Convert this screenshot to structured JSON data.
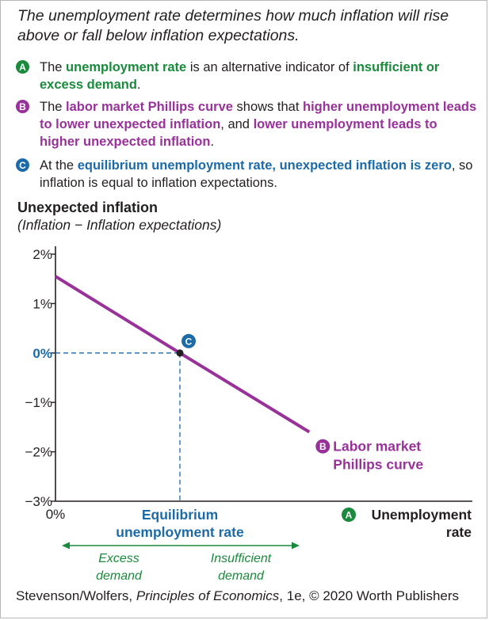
{
  "heading": "The unemployment rate determines how much inflation will rise above or fall below inflation expectations.",
  "notes": {
    "a": {
      "badge": "A",
      "t1": "The ",
      "h1": "unemployment rate",
      "t2": " is an alternative indicator of ",
      "h2": "insufficient or excess demand",
      "t3": "."
    },
    "b": {
      "badge": "B",
      "t1": "The ",
      "h1": "labor market Phillips curve",
      "t2": " shows that ",
      "h2": "higher unemployment leads to lower unexpected inflation",
      "t3": ", and ",
      "h3": "lower unemployment leads to higher unexpected inflation",
      "t4": "."
    },
    "c": {
      "badge": "C",
      "t1": "At the ",
      "h1": "equilibrium unemployment rate, unexpected inflation is zero",
      "t2": ", so inflation is equal to inflation expectations."
    }
  },
  "colors": {
    "green": "#1a8a3c",
    "purple": "#98329a",
    "blue": "#1c6aa8",
    "text": "#231f20"
  },
  "chart_data": {
    "type": "line",
    "title": "Unexpected inflation",
    "subtitle": "(Inflation − Inflation expectations)",
    "ylabel": "Unexpected inflation",
    "xlabel": "Unemployment rate",
    "ylim": [
      -3,
      2
    ],
    "y_ticks": [
      {
        "value": 2,
        "label": "2%"
      },
      {
        "value": 1,
        "label": "1%"
      },
      {
        "value": 0,
        "label": "0%"
      },
      {
        "value": -1,
        "label": "−1%"
      },
      {
        "value": -2,
        "label": "−2%"
      },
      {
        "value": -3,
        "label": "−3%"
      }
    ],
    "x_origin_label": "0%",
    "x_equilibrium_index": 1,
    "series": [
      {
        "name": "Labor market Phillips curve",
        "x": [
          0,
          1,
          2.04
        ],
        "values": [
          1.55,
          0,
          -1.6
        ]
      }
    ],
    "equilibrium": {
      "x": 1,
      "y": 0,
      "badge": "C"
    },
    "curve_label": {
      "badge": "B",
      "line1": "Labor market",
      "line2": "Phillips curve"
    },
    "xaxis_label": {
      "badge": "A",
      "line1": "Unemployment",
      "line2": "rate"
    },
    "equilibrium_label": {
      "line1": "Equilibrium",
      "line2": "unemployment rate"
    },
    "left_arrow_label": {
      "line1": "Excess",
      "line2": "demand"
    },
    "right_arrow_label": {
      "line1": "Insufficient",
      "line2": "demand"
    }
  },
  "credit": {
    "t1": "Stevenson/Wolfers, ",
    "book": "Principles of Economics",
    "t2": ", 1e, © 2020 Worth Publishers"
  }
}
